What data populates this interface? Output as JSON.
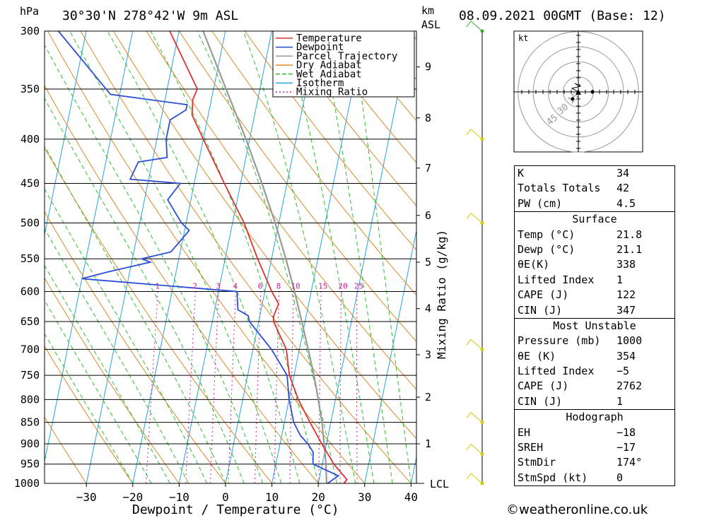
{
  "header": {
    "location": "30°30'N  278°42'W  9m  ASL",
    "datetime": "08.09.2021  00GMT  (Base: 12)",
    "hpa_label": "hPa",
    "km_label": "km",
    "asl_label": "ASL"
  },
  "chart_data": {
    "type": "line",
    "title": "",
    "xlabel": "Dewpoint / Temperature (°C)",
    "ylabel": "hPa",
    "y2label": "Mixing Ratio (g/kg)",
    "xlim": [
      -40,
      40
    ],
    "ylim": [
      1000,
      300
    ],
    "log_y": true,
    "skew": true,
    "x_ticks": [
      -30,
      -20,
      -10,
      0,
      10,
      20,
      30,
      40
    ],
    "pressure_levels": [
      300,
      350,
      400,
      450,
      500,
      550,
      600,
      650,
      700,
      750,
      800,
      850,
      900,
      950,
      1000
    ],
    "km_ticks": [
      {
        "km": 1,
        "p": 900
      },
      {
        "km": 2,
        "p": 795
      },
      {
        "km": 3,
        "p": 710
      },
      {
        "km": 4,
        "p": 628
      },
      {
        "km": 5,
        "p": 555
      },
      {
        "km": 6,
        "p": 490
      },
      {
        "km": 7,
        "p": 432
      },
      {
        "km": 8,
        "p": 378
      },
      {
        "km": 9,
        "p": 330
      }
    ],
    "lcl_label": "LCL",
    "mixing_ratio_labels": [
      "1",
      "2",
      "3",
      "4",
      "6",
      "8",
      "10",
      "15",
      "20",
      "25"
    ],
    "mixing_ratio_values": [
      1,
      2,
      3,
      4,
      6,
      8,
      10,
      15,
      20,
      25
    ],
    "legend": {
      "placement": "top",
      "entries": [
        "Temperature",
        "Dewpoint",
        "Parcel Trajectory",
        "Dry Adiabat",
        "Wet Adiabat",
        "Isotherm",
        "Mixing Ratio"
      ]
    },
    "series": [
      {
        "name": "Temperature",
        "color": "#e03030",
        "points": [
          [
            1000,
            25.5
          ],
          [
            990,
            26
          ],
          [
            950,
            22.5
          ],
          [
            900,
            19
          ],
          [
            850,
            15.5
          ],
          [
            800,
            12
          ],
          [
            750,
            9
          ],
          [
            700,
            7.2
          ],
          [
            650,
            3.2
          ],
          [
            640,
            3
          ],
          [
            620,
            3.5
          ],
          [
            600,
            1.5
          ],
          [
            550,
            -3
          ],
          [
            500,
            -7.5
          ],
          [
            450,
            -13.5
          ],
          [
            400,
            -20
          ],
          [
            375,
            -23.5
          ],
          [
            360,
            -24
          ],
          [
            350,
            -23.5
          ],
          [
            300,
            -32
          ]
        ]
      },
      {
        "name": "Dewpoint",
        "color": "#2a4fd6",
        "points": [
          [
            1000,
            22
          ],
          [
            980,
            24
          ],
          [
            950,
            18
          ],
          [
            920,
            17.5
          ],
          [
            900,
            16
          ],
          [
            880,
            14
          ],
          [
            850,
            12
          ],
          [
            800,
            10
          ],
          [
            750,
            8.5
          ],
          [
            700,
            4
          ],
          [
            650,
            -2
          ],
          [
            640,
            -2.5
          ],
          [
            630,
            -5
          ],
          [
            600,
            -6
          ],
          [
            580,
            -40
          ],
          [
            570,
            -35
          ],
          [
            555,
            -26
          ],
          [
            550,
            -28
          ],
          [
            540,
            -22
          ],
          [
            510,
            -19
          ],
          [
            500,
            -21
          ],
          [
            470,
            -25
          ],
          [
            450,
            -23
          ],
          [
            445,
            -34
          ],
          [
            425,
            -33
          ],
          [
            420,
            -27
          ],
          [
            400,
            -28
          ],
          [
            380,
            -28
          ],
          [
            370,
            -25
          ],
          [
            365,
            -25
          ],
          [
            355,
            -42
          ],
          [
            300,
            -56
          ]
        ]
      },
      {
        "name": "Parcel Trajectory",
        "color": "#999999",
        "points": [
          [
            1000,
            21.8
          ],
          [
            950,
            20.8
          ],
          [
            900,
            19.5
          ],
          [
            850,
            18.1
          ],
          [
            800,
            16.3
          ],
          [
            750,
            14.3
          ],
          [
            700,
            11.9
          ],
          [
            650,
            9.3
          ],
          [
            600,
            6.4
          ],
          [
            550,
            3.1
          ],
          [
            500,
            -0.8
          ],
          [
            450,
            -5.4
          ],
          [
            400,
            -10.8
          ],
          [
            350,
            -17.3
          ],
          [
            300,
            -24.8
          ]
        ]
      }
    ],
    "wind_barbs": [
      {
        "p": 300,
        "color": "#33aa33"
      },
      {
        "p": 400,
        "color": "#cccc00"
      },
      {
        "p": 500,
        "color": "#cccc00"
      },
      {
        "p": 700,
        "color": "#cccc00"
      },
      {
        "p": 850,
        "color": "#cccc00"
      },
      {
        "p": 925,
        "color": "#cccc00"
      },
      {
        "p": 1000,
        "color": "#cccc00"
      }
    ]
  },
  "hodograph": {
    "unit_label": "kt",
    "ring_labels": [
      "15",
      "30",
      "45"
    ]
  },
  "indices": {
    "general": [
      {
        "label": "K",
        "value": "34"
      },
      {
        "label": "Totals Totals",
        "value": "42"
      },
      {
        "label": "PW (cm)",
        "value": "4.5"
      }
    ],
    "surface_title": "Surface",
    "surface": [
      {
        "label": "Temp (°C)",
        "value": "21.8"
      },
      {
        "label": "Dewp (°C)",
        "value": "21.1"
      },
      {
        "label": "θE(K)",
        "value": "338"
      },
      {
        "label": "Lifted Index",
        "value": "1"
      },
      {
        "label": "CAPE (J)",
        "value": "122"
      },
      {
        "label": "CIN (J)",
        "value": "347"
      }
    ],
    "mu_title": "Most Unstable",
    "most_unstable": [
      {
        "label": "Pressure (mb)",
        "value": "1000"
      },
      {
        "label": "θE (K)",
        "value": "354"
      },
      {
        "label": "Lifted Index",
        "value": "−5"
      },
      {
        "label": "CAPE (J)",
        "value": "2762"
      },
      {
        "label": "CIN (J)",
        "value": "1"
      }
    ],
    "hodo_title": "Hodograph",
    "hodograph": [
      {
        "label": "EH",
        "value": "−18"
      },
      {
        "label": "SREH",
        "value": "−17"
      },
      {
        "label": "StmDir",
        "value": "174°"
      },
      {
        "label": "StmSpd (kt)",
        "value": "0"
      }
    ]
  },
  "footer": {
    "credit": "©weatheronline.co.uk"
  },
  "colors": {
    "temperature": "#e03030",
    "dewpoint": "#2a4fd6",
    "parcel": "#999999",
    "dry_adiabat": "#d98a2b",
    "wet_adiabat": "#2fbf2f",
    "isotherm": "#27a3e0",
    "mixing_ratio": "#d0209a"
  }
}
